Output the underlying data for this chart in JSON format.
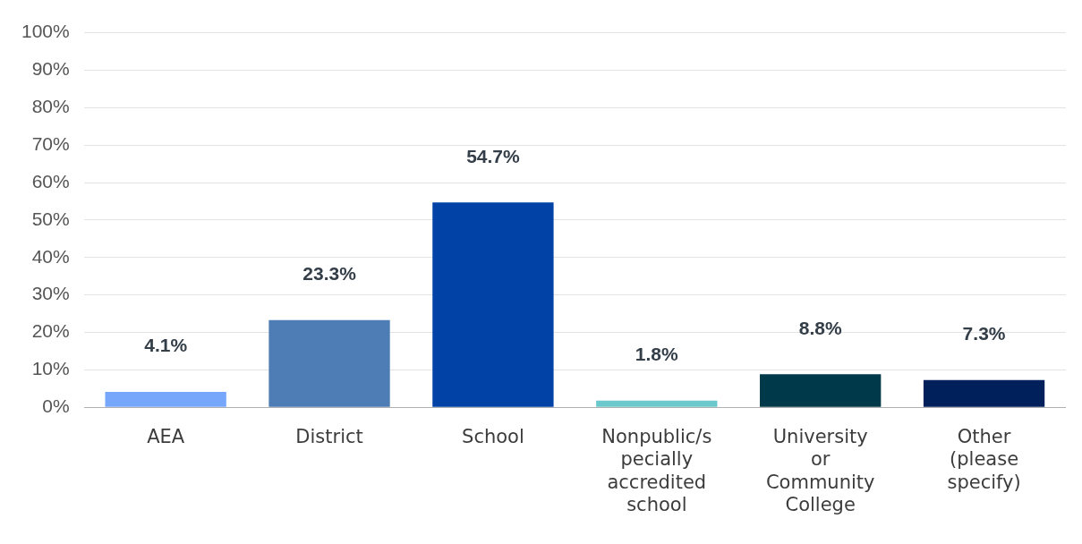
{
  "chart_data": {
    "type": "bar",
    "categories": [
      "AEA",
      "District",
      "School",
      "Nonpublic/specially accredited school",
      "University or Community College",
      "Other (please specify)"
    ],
    "values": [
      4.1,
      23.3,
      54.7,
      1.8,
      8.8,
      7.3
    ],
    "colors": [
      "#76a7fa",
      "#4e7cb5",
      "#0042a6",
      "#6bc8cd",
      "#003a4a",
      "#00205b"
    ],
    "value_labels": [
      "4.1%",
      "23.3%",
      "54.7%",
      "1.8%",
      "8.8%",
      "7.3%"
    ],
    "ylim": [
      0,
      100
    ],
    "yticks": [
      {
        "value": 0,
        "label": "0%"
      },
      {
        "value": 10,
        "label": "10%"
      },
      {
        "value": 20,
        "label": "20%"
      },
      {
        "value": 30,
        "label": "30%"
      },
      {
        "value": 40,
        "label": "40%"
      },
      {
        "value": 50,
        "label": "50%"
      },
      {
        "value": 60,
        "label": "60%"
      },
      {
        "value": 70,
        "label": "70%"
      },
      {
        "value": 80,
        "label": "80%"
      },
      {
        "value": 90,
        "label": "90%"
      },
      {
        "value": 100,
        "label": "100%"
      }
    ],
    "grid": "y",
    "legend": false
  }
}
